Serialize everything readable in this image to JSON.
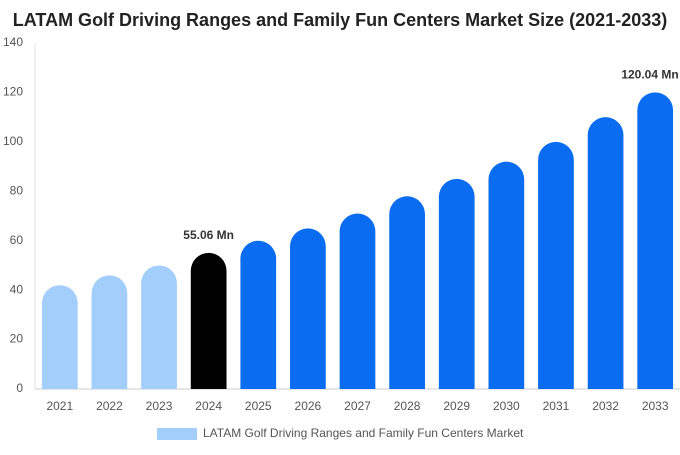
{
  "chart_data": {
    "type": "bar",
    "title": "LATAM Golf Driving Ranges and Family Fun Centers Market Size (2021-2033)",
    "categories": [
      "2021",
      "2022",
      "2023",
      "2024",
      "2025",
      "2026",
      "2027",
      "2028",
      "2029",
      "2030",
      "2031",
      "2032",
      "2033"
    ],
    "series": [
      {
        "name": "LATAM Golf Driving Ranges and Family Fun Centers Market",
        "color": "#a3cdfb",
        "values": [
          42,
          46,
          50,
          55.06,
          60,
          65,
          71,
          78,
          85,
          92,
          100,
          110,
          120.04
        ],
        "value_labels": [
          null,
          null,
          null,
          "55.06 Mn",
          null,
          null,
          null,
          null,
          null,
          null,
          null,
          null,
          "120.04 Mn"
        ]
      }
    ],
    "bar_colors": [
      "#a3cdfb",
      "#a3cdfb",
      "#a3cdfb",
      "#000000",
      "#0a6cf0",
      "#0a6cf0",
      "#0a6cf0",
      "#0a6cf0",
      "#0a6cf0",
      "#0a6cf0",
      "#0a6cf0",
      "#0a6cf0",
      "#0a6cf0"
    ],
    "ylim": [
      0,
      140
    ],
    "yticks": [
      0,
      20,
      40,
      60,
      80,
      100,
      120,
      140
    ],
    "grid": false
  }
}
